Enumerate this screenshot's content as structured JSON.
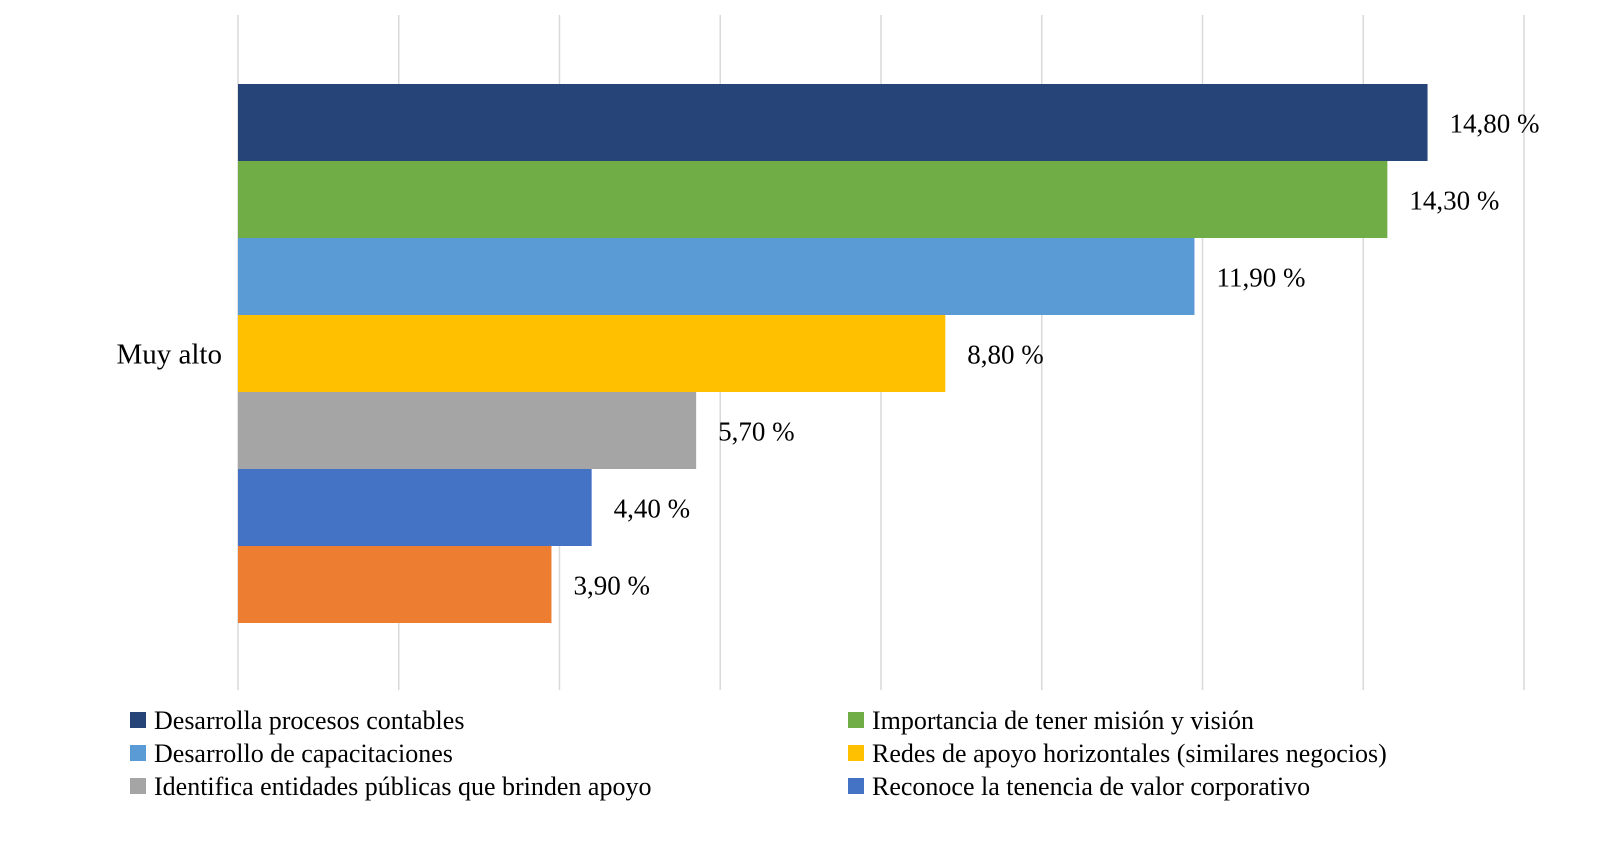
{
  "chart_data": {
    "type": "bar",
    "orientation": "horizontal",
    "categories": [
      "Muy alto"
    ],
    "xlim": [
      0,
      16
    ],
    "grid": true,
    "legend_position": "bottom",
    "series": [
      {
        "name": "Desarrolla procesos contables",
        "value": 14.8,
        "label": "14,80 %",
        "color": "#264478"
      },
      {
        "name": "Importancia de tener misión y visión",
        "value": 14.3,
        "label": "14,30 %",
        "color": "#70ad47"
      },
      {
        "name": "Desarrollo de capacitaciones",
        "value": 11.9,
        "label": "11,90 %",
        "color": "#5b9bd5"
      },
      {
        "name": "Redes de apoyo horizontales (similares negocios)",
        "value": 8.8,
        "label": "8,80 %",
        "color": "#ffc000"
      },
      {
        "name": "Identifica entidades públicas que brinden apoyo",
        "value": 5.7,
        "label": "5,70 %",
        "color": "#a5a5a5"
      },
      {
        "name": "Reconoce la tenencia de valor corporativo",
        "value": 4.4,
        "label": "4,40 %",
        "color": "#4472c4"
      },
      {
        "name": "",
        "value": 3.9,
        "label": "3,90 %",
        "color": "#ed7d31"
      }
    ]
  }
}
